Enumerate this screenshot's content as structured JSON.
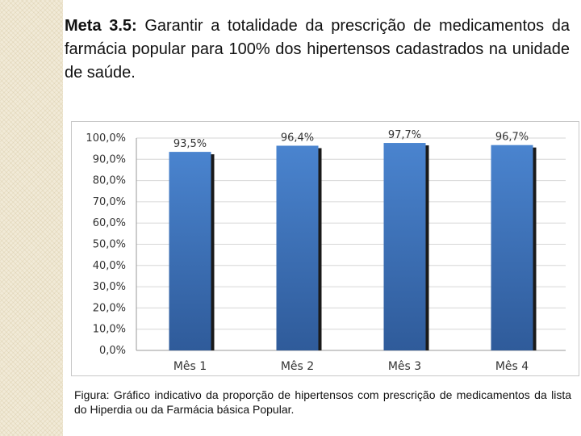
{
  "heading": {
    "label": "Meta 3.5:",
    "text": "Garantir a totalidade da prescrição de medicamentos da farmácia popular para 100% dos hipertensos cadastrados na unidade de saúde."
  },
  "chart_data": {
    "type": "bar",
    "title": "",
    "xlabel": "",
    "ylabel": "",
    "categories": [
      "Mês 1",
      "Mês 2",
      "Mês 3",
      "Mês 4"
    ],
    "values": [
      93.5,
      96.4,
      97.7,
      96.7
    ],
    "value_labels": [
      "93,5%",
      "96,4%",
      "97,7%",
      "96,7%"
    ],
    "ylim": [
      0,
      100
    ],
    "yticks": [
      0,
      10,
      20,
      30,
      40,
      50,
      60,
      70,
      80,
      90,
      100
    ],
    "ytick_labels": [
      "0,0%",
      "10,0%",
      "20,0%",
      "30,0%",
      "40,0%",
      "50,0%",
      "60,0%",
      "70,0%",
      "80,0%",
      "90,0%",
      "100,0%"
    ],
    "grid": true,
    "legend": "none",
    "bar_color": "#3f72b5"
  },
  "caption": {
    "text": "Figura: Gráfico indicativo da proporção de hipertensos com prescrição de medicamentos da lista do Hiperdia ou da Farmácia básica Popular."
  }
}
